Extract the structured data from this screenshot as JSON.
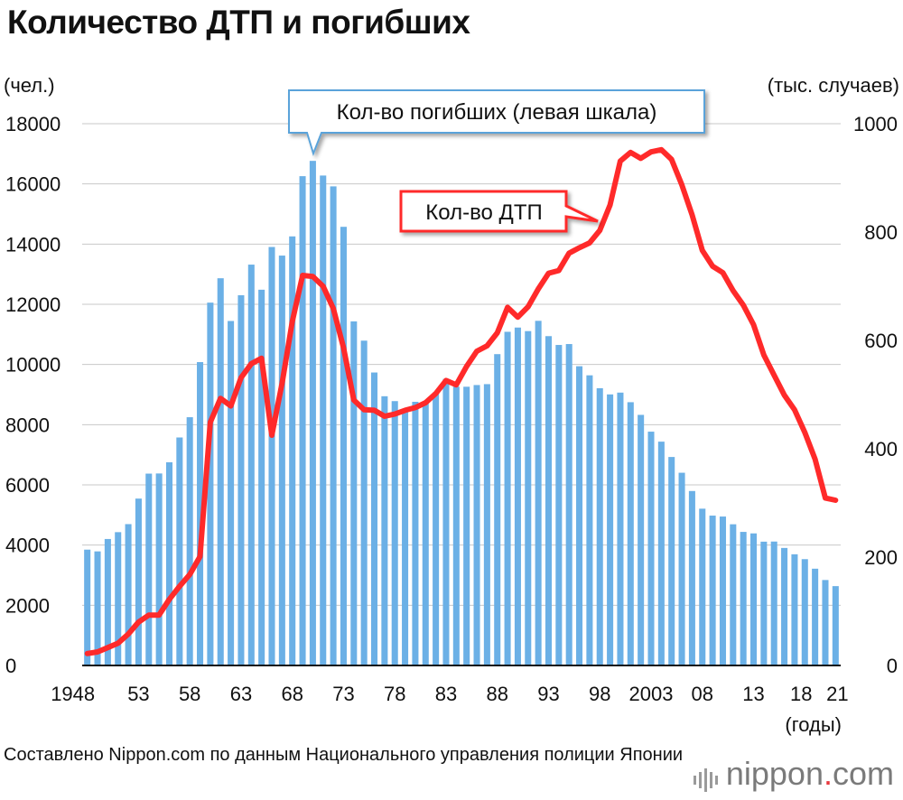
{
  "title": "Количество ДТП и погибших",
  "source": "Составлено Nippon.com по данным Национального управления полиции Японии",
  "logo": {
    "text": "nippon",
    "dot": ".",
    "suffix": "com"
  },
  "colors": {
    "bars": "#6bb0e6",
    "line": "#ff2a2a",
    "callout_deaths_border": "#5aa3da",
    "callout_accidents_border": "#ff2a2a"
  },
  "chart_data": {
    "type": "bar+line",
    "title": "Количество ДТП и погибших",
    "left_axis": {
      "unit": "(чел.)",
      "range": [
        0,
        18000
      ],
      "ticks": [
        0,
        2000,
        4000,
        6000,
        8000,
        10000,
        12000,
        14000,
        16000,
        18000
      ]
    },
    "right_axis": {
      "unit": "(тыс. случаев)",
      "range": [
        0,
        1000
      ],
      "ticks": [
        0,
        200,
        400,
        600,
        800,
        1000
      ]
    },
    "x_unit": "(годы)",
    "x_tick_labels": [
      "1948",
      "53",
      "58",
      "63",
      "68",
      "73",
      "78",
      "83",
      "88",
      "93",
      "98",
      "2003",
      "08",
      "13",
      "18",
      "21"
    ],
    "years": [
      1948,
      1949,
      1950,
      1951,
      1952,
      1953,
      1954,
      1955,
      1956,
      1957,
      1958,
      1959,
      1960,
      1961,
      1962,
      1963,
      1964,
      1965,
      1966,
      1967,
      1968,
      1969,
      1970,
      1971,
      1972,
      1973,
      1974,
      1975,
      1976,
      1977,
      1978,
      1979,
      1980,
      1981,
      1982,
      1983,
      1984,
      1985,
      1986,
      1987,
      1988,
      1989,
      1990,
      1991,
      1992,
      1993,
      1994,
      1995,
      1996,
      1997,
      1998,
      1999,
      2000,
      2001,
      2002,
      2003,
      2004,
      2005,
      2006,
      2007,
      2008,
      2009,
      2010,
      2011,
      2012,
      2013,
      2014,
      2015,
      2016,
      2017,
      2018,
      2019,
      2020,
      2021
    ],
    "series": [
      {
        "name": "Кол-во погибших (левая шкала)",
        "type": "bar",
        "axis": "left",
        "values": [
          3848,
          3790,
          4202,
          4429,
          4696,
          5544,
          6374,
          6379,
          6751,
          7575,
          8248,
          10079,
          12055,
          12865,
          11445,
          12301,
          13318,
          12484,
          13904,
          13618,
          14256,
          16257,
          16765,
          16278,
          15918,
          14574,
          11432,
          10792,
          9734,
          8945,
          8783,
          8466,
          8760,
          8719,
          9073,
          9520,
          9262,
          9261,
          9317,
          9347,
          10344,
          11086,
          11227,
          11109,
          11451,
          10942,
          10649,
          10679,
          9942,
          9640,
          9211,
          9006,
          9066,
          8747,
          8326,
          7768,
          7436,
          6927,
          6403,
          5796,
          5209,
          4979,
          4948,
          4691,
          4438,
          4388,
          4113,
          4117,
          3904,
          3694,
          3532,
          3215,
          2839,
          2636
        ]
      },
      {
        "name": "Кол-во ДТП",
        "type": "line",
        "axis": "right",
        "values": [
          22,
          25,
          33,
          41,
          58,
          80,
          93,
          93,
          122,
          146,
          168,
          201,
          449,
          493,
          479,
          531,
          557,
          567,
          425,
          521,
          635,
          720,
          718,
          700,
          659,
          586,
          490,
          472,
          471,
          460,
          464,
          471,
          476,
          485,
          502,
          526,
          518,
          552,
          580,
          590,
          614,
          661,
          643,
          662,
          695,
          724,
          729,
          761,
          771,
          780,
          803,
          850,
          931,
          947,
          936,
          948,
          952,
          934,
          887,
          832,
          766,
          737,
          725,
          692,
          665,
          629,
          573,
          536,
          499,
          472,
          430,
          381,
          309,
          305
        ]
      }
    ],
    "annotations": [
      {
        "text": "Кол-во погибших (левая шкала)",
        "points_to": "bar 1970"
      },
      {
        "text": "Кол-во ДТП",
        "points_to": "line ~1998"
      }
    ]
  }
}
